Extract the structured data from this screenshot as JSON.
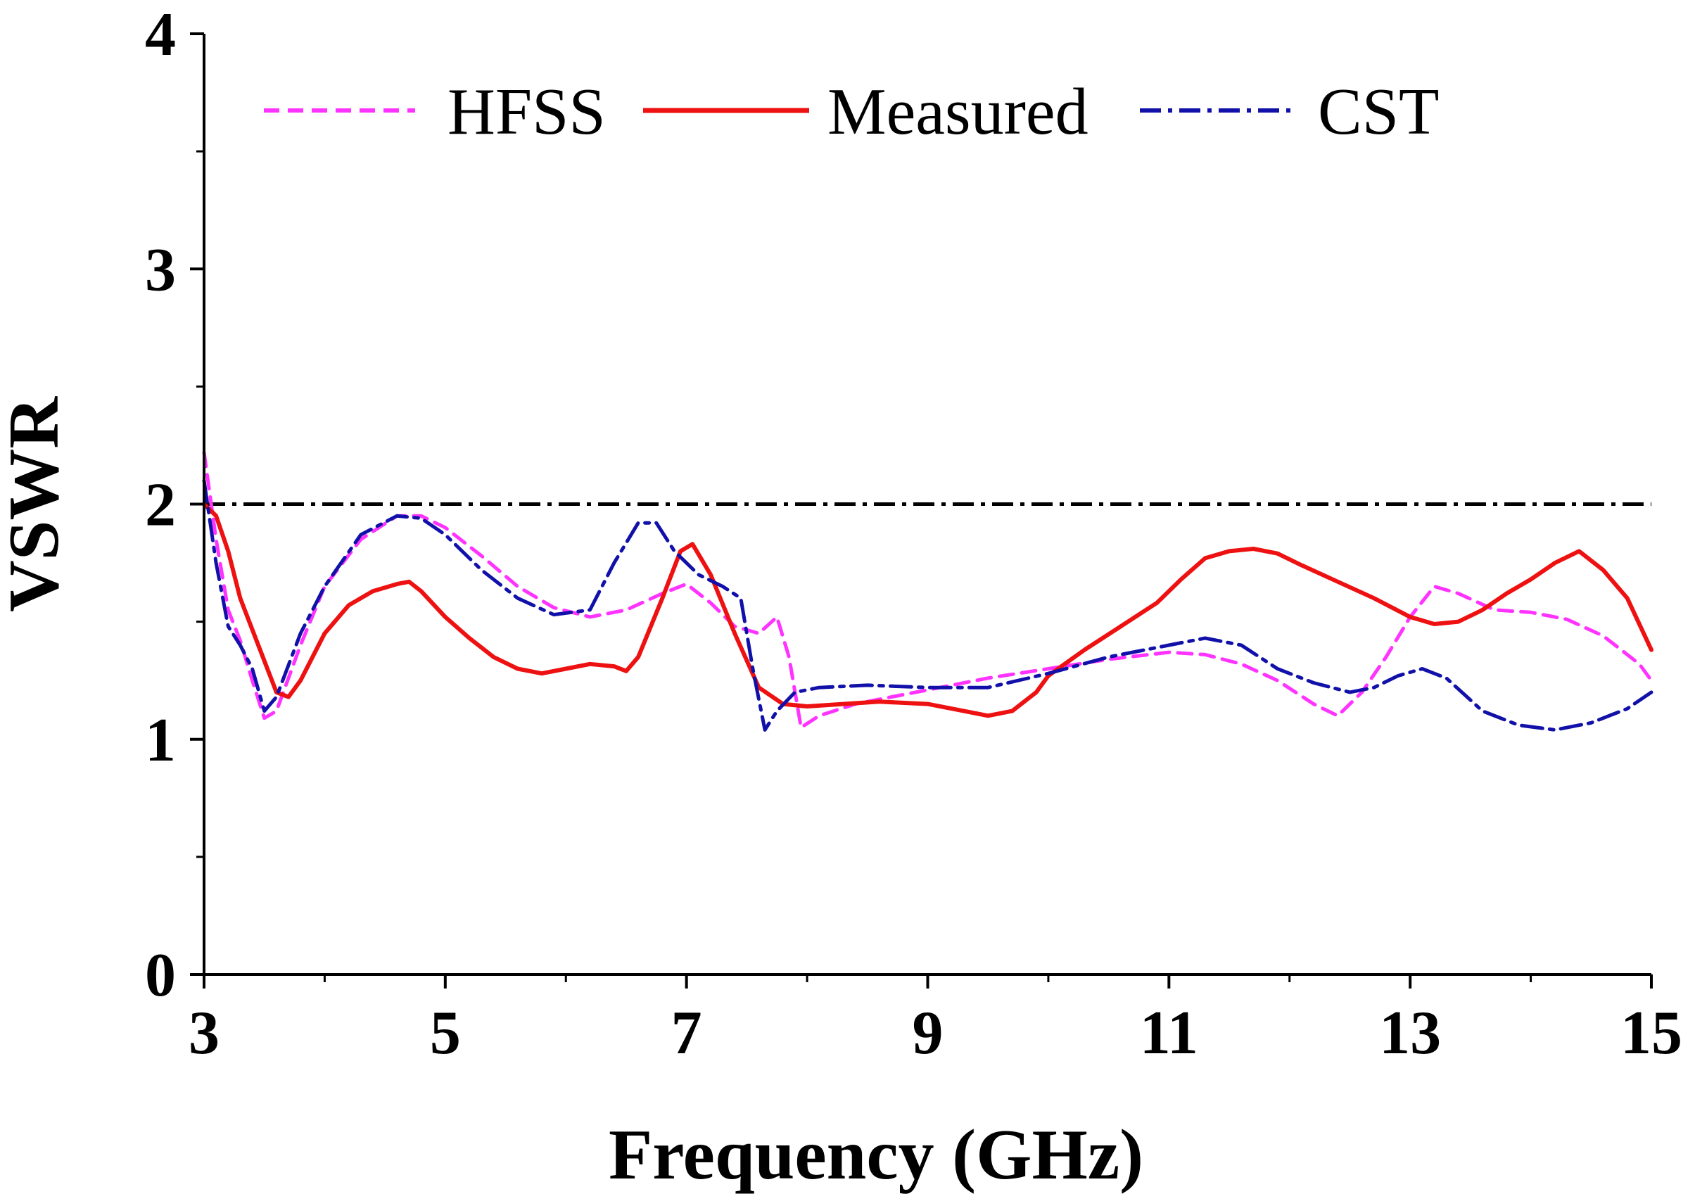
{
  "chart_data": {
    "type": "line",
    "xlabel": "Frequency (GHz)",
    "ylabel": "VSWR",
    "xlim": [
      3,
      15
    ],
    "ylim": [
      0,
      4
    ],
    "x_ticks": [
      3,
      5,
      7,
      9,
      11,
      13,
      15
    ],
    "y_ticks": [
      0,
      1,
      2,
      3,
      4
    ],
    "legend": {
      "placement": "top",
      "entries": [
        "HFSS",
        "Measured",
        "CST"
      ]
    },
    "reference_line": {
      "y": 2,
      "color": "#000000",
      "style": "dash-dot"
    },
    "series": [
      {
        "name": "HFSS",
        "color": "#ff33ff",
        "style": "dashed",
        "x": [
          3.0,
          3.1,
          3.2,
          3.3,
          3.4,
          3.5,
          3.6,
          3.8,
          4.0,
          4.3,
          4.6,
          4.8,
          5.0,
          5.3,
          5.6,
          5.9,
          6.2,
          6.5,
          6.8,
          7.0,
          7.2,
          7.4,
          7.6,
          7.75,
          7.85,
          7.95,
          8.1,
          8.4,
          8.7,
          9.0,
          9.5,
          10.0,
          10.5,
          11.0,
          11.3,
          11.6,
          11.9,
          12.2,
          12.4,
          12.6,
          12.8,
          13.0,
          13.2,
          13.4,
          13.7,
          14.0,
          14.3,
          14.6,
          14.9,
          15.0
        ],
        "values": [
          2.22,
          1.85,
          1.55,
          1.42,
          1.25,
          1.09,
          1.12,
          1.4,
          1.65,
          1.85,
          1.95,
          1.95,
          1.9,
          1.78,
          1.65,
          1.56,
          1.52,
          1.55,
          1.62,
          1.66,
          1.58,
          1.48,
          1.45,
          1.52,
          1.35,
          1.05,
          1.1,
          1.15,
          1.18,
          1.21,
          1.26,
          1.3,
          1.34,
          1.37,
          1.36,
          1.32,
          1.25,
          1.15,
          1.1,
          1.2,
          1.35,
          1.52,
          1.65,
          1.62,
          1.55,
          1.54,
          1.51,
          1.44,
          1.32,
          1.25
        ]
      },
      {
        "name": "Measured",
        "color": "#ee1111",
        "style": "solid",
        "x": [
          3.0,
          3.1,
          3.2,
          3.3,
          3.45,
          3.6,
          3.7,
          3.8,
          4.0,
          4.2,
          4.4,
          4.6,
          4.7,
          4.8,
          5.0,
          5.2,
          5.4,
          5.6,
          5.8,
          6.0,
          6.2,
          6.4,
          6.5,
          6.6,
          6.8,
          6.95,
          7.05,
          7.2,
          7.4,
          7.6,
          7.8,
          8.0,
          8.3,
          8.6,
          9.0,
          9.3,
          9.5,
          9.7,
          9.9,
          10.0,
          10.3,
          10.6,
          10.9,
          11.1,
          11.3,
          11.5,
          11.7,
          11.9,
          12.1,
          12.4,
          12.7,
          13.0,
          13.2,
          13.4,
          13.6,
          13.8,
          14.0,
          14.2,
          14.4,
          14.6,
          14.8,
          15.0
        ],
        "values": [
          2.0,
          1.95,
          1.8,
          1.6,
          1.4,
          1.2,
          1.18,
          1.25,
          1.45,
          1.57,
          1.63,
          1.66,
          1.67,
          1.63,
          1.52,
          1.43,
          1.35,
          1.3,
          1.28,
          1.3,
          1.32,
          1.31,
          1.29,
          1.35,
          1.6,
          1.8,
          1.83,
          1.7,
          1.45,
          1.22,
          1.15,
          1.14,
          1.15,
          1.16,
          1.15,
          1.12,
          1.1,
          1.12,
          1.2,
          1.27,
          1.38,
          1.48,
          1.58,
          1.68,
          1.77,
          1.8,
          1.81,
          1.79,
          1.74,
          1.67,
          1.6,
          1.52,
          1.49,
          1.5,
          1.55,
          1.62,
          1.68,
          1.75,
          1.8,
          1.72,
          1.6,
          1.38
        ]
      },
      {
        "name": "CST",
        "color": "#1111aa",
        "style": "dash-dot",
        "x": [
          3.0,
          3.1,
          3.2,
          3.3,
          3.4,
          3.5,
          3.6,
          3.8,
          4.0,
          4.3,
          4.6,
          4.8,
          5.0,
          5.3,
          5.6,
          5.9,
          6.2,
          6.4,
          6.6,
          6.75,
          6.9,
          7.1,
          7.3,
          7.45,
          7.55,
          7.65,
          7.75,
          7.9,
          8.1,
          8.5,
          9.0,
          9.5,
          10.0,
          10.5,
          11.0,
          11.3,
          11.6,
          11.9,
          12.2,
          12.5,
          12.7,
          12.9,
          13.1,
          13.3,
          13.6,
          13.9,
          14.2,
          14.5,
          14.8,
          15.0
        ],
        "values": [
          2.1,
          1.75,
          1.48,
          1.4,
          1.3,
          1.12,
          1.18,
          1.45,
          1.65,
          1.87,
          1.95,
          1.94,
          1.87,
          1.72,
          1.6,
          1.53,
          1.55,
          1.75,
          1.92,
          1.92,
          1.8,
          1.7,
          1.65,
          1.6,
          1.3,
          1.04,
          1.12,
          1.2,
          1.22,
          1.23,
          1.22,
          1.22,
          1.28,
          1.35,
          1.4,
          1.43,
          1.4,
          1.3,
          1.24,
          1.2,
          1.22,
          1.27,
          1.3,
          1.26,
          1.12,
          1.06,
          1.04,
          1.07,
          1.13,
          1.2
        ]
      }
    ]
  }
}
